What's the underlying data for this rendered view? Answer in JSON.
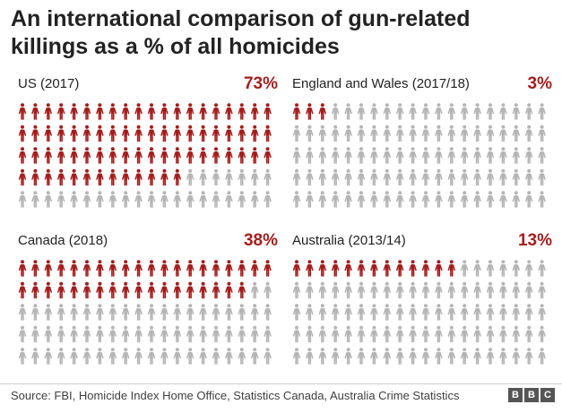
{
  "title_line1": "An international comparison of gun-related",
  "title_line2": "killings as a % of all homicides",
  "colors": {
    "highlight": "#a51d1d",
    "other": "#b5b5b5",
    "text": "#222222"
  },
  "icon": "person-icon",
  "chart_data": {
    "type": "pictogram",
    "unit": "%",
    "icons_per_panel": 100,
    "rows": 5,
    "columns": 20,
    "panels": [
      {
        "name": "US (2017)",
        "value": 73,
        "label": "73%"
      },
      {
        "name": "England and Wales (2017/18)",
        "value": 3,
        "label": "3%"
      },
      {
        "name": "Canada (2018)",
        "value": 38,
        "label": "38%"
      },
      {
        "name": "Australia (2013/14)",
        "value": 13,
        "label": "13%"
      }
    ]
  },
  "footer": {
    "source": "Source: FBI, Homicide Index Home Office, Statistics Canada, Australia Crime Statistics",
    "logo_letters": [
      "B",
      "B",
      "C"
    ]
  }
}
